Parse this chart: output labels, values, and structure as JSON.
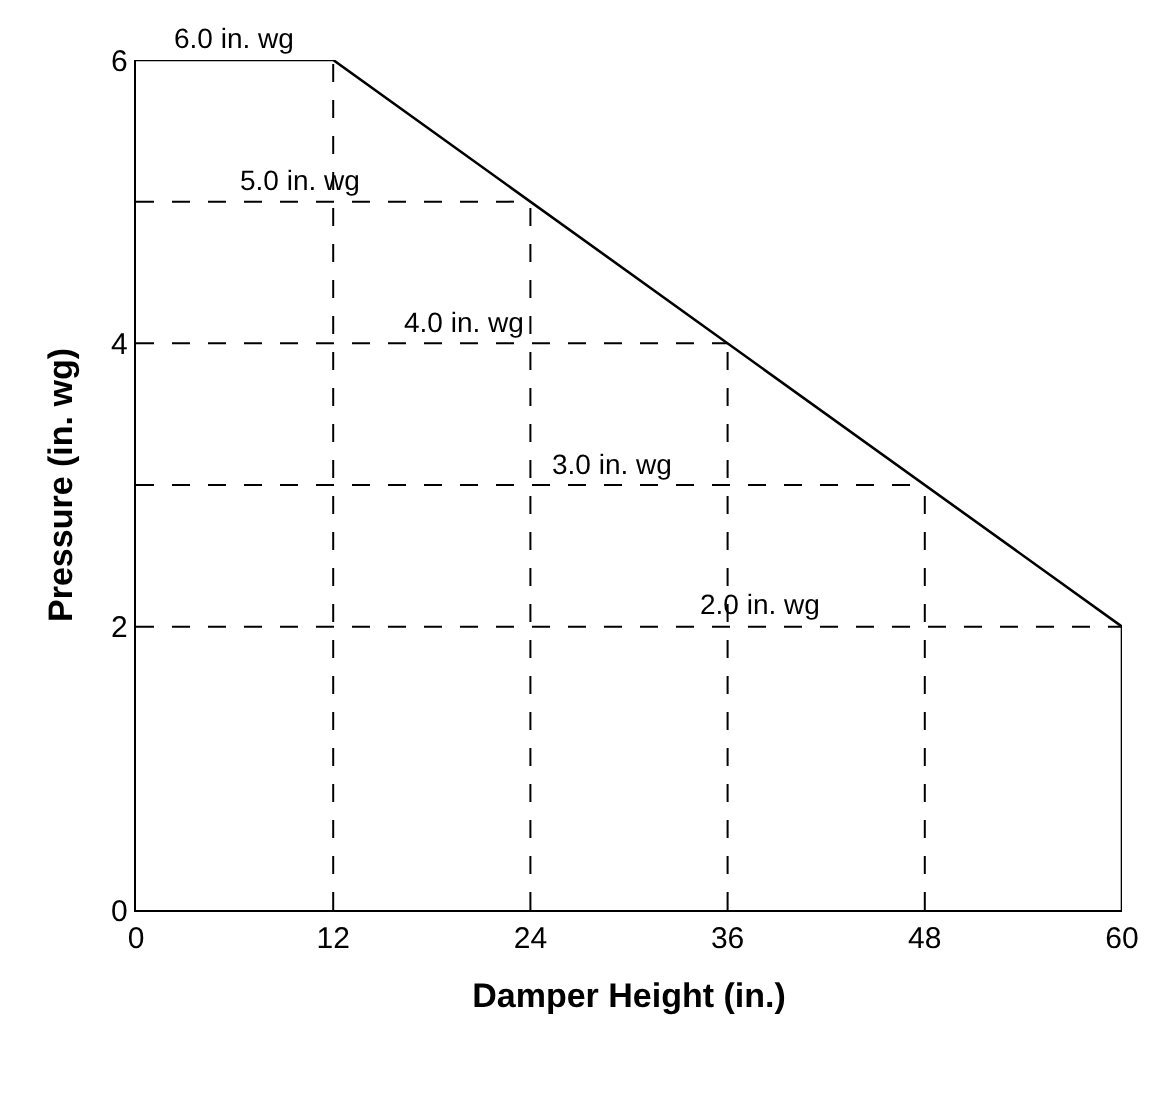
{
  "chart_data": {
    "type": "line",
    "xlabel": "Damper Height (in.)",
    "ylabel": "Pressure (in. wg)",
    "x": [
      0,
      12,
      60,
      60
    ],
    "series": [
      {
        "color": "#000000",
        "values": [
          6,
          6,
          2,
          0
        ]
      }
    ],
    "xlim": [
      0,
      60
    ],
    "xticks": [
      0,
      12,
      24,
      36,
      48,
      60
    ],
    "ylim": [
      0,
      6
    ],
    "yticks": [
      0,
      2,
      4,
      6
    ],
    "marker": "none",
    "line_style": "solid",
    "ref_lines": [
      {
        "axis": "y",
        "value": 5,
        "color": "#000000",
        "line_style": "dashed"
      },
      {
        "axis": "y",
        "value": 4,
        "color": "#000000",
        "line_style": "dashed"
      },
      {
        "axis": "y",
        "value": 3,
        "color": "#000000",
        "line_style": "dashed"
      },
      {
        "axis": "y",
        "value": 2,
        "color": "#000000",
        "line_style": "dashed"
      },
      {
        "axis": "x",
        "value": 12,
        "color": "#000000",
        "line_style": "dashed"
      },
      {
        "axis": "x",
        "value": 24,
        "color": "#000000",
        "line_style": "dashed"
      },
      {
        "axis": "x",
        "value": 36,
        "color": "#000000",
        "line_style": "dashed"
      },
      {
        "axis": "x",
        "value": 48,
        "color": "#000000",
        "line_style": "dashed"
      }
    ],
    "annotations": [
      {
        "text": "6.0 in. wg",
        "x": 6,
        "y": 6
      },
      {
        "text": "5.0 in. wg",
        "x": 10,
        "y": 5
      },
      {
        "text": "4.0 in. wg",
        "x": 20,
        "y": 4
      },
      {
        "text": "3.0 in. wg",
        "x": 29,
        "y": 3
      },
      {
        "text": "2.0 in. wg",
        "x": 38,
        "y": 2
      }
    ]
  }
}
